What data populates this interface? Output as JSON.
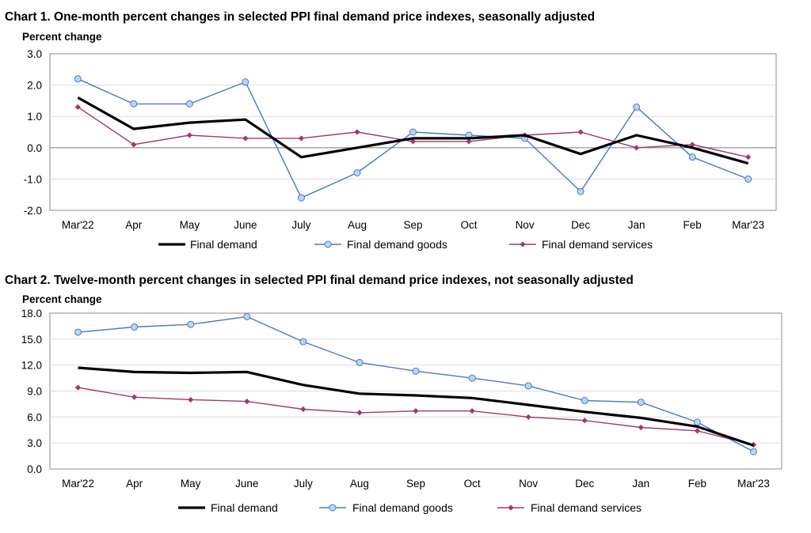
{
  "chart_data": [
    {
      "type": "line",
      "title": "Chart 1. One-month percent changes in selected PPI final demand price indexes, seasonally adjusted",
      "ylabel": "Percent change",
      "xlabel": "",
      "ylim": [
        -2.0,
        3.0
      ],
      "yticks": [
        "3.0",
        "2.0",
        "1.0",
        "0.0",
        "-1.0",
        "-2.0"
      ],
      "ytick_values": [
        3,
        2,
        1,
        0,
        -1,
        -2
      ],
      "categories": [
        "Mar'22",
        "Apr",
        "May",
        "June",
        "July",
        "Aug",
        "Sep",
        "Oct",
        "Nov",
        "Dec",
        "Jan",
        "Feb",
        "Mar'23"
      ],
      "grid": true,
      "legend_position": "bottom",
      "series": [
        {
          "name": "Final demand",
          "color": "#000000",
          "marker": "none",
          "values": [
            1.6,
            0.6,
            0.8,
            0.9,
            -0.3,
            0.0,
            0.3,
            0.3,
            0.4,
            -0.2,
            0.4,
            0.0,
            -0.5
          ]
        },
        {
          "name": "Final demand goods",
          "color": "#4a78c2",
          "marker": "circle",
          "values": [
            2.2,
            1.4,
            1.4,
            2.1,
            -1.6,
            -0.8,
            0.5,
            0.4,
            0.3,
            -1.4,
            1.3,
            -0.3,
            -1.0
          ]
        },
        {
          "name": "Final demand services",
          "color": "#9b3a6e",
          "marker": "diamond",
          "values": [
            1.3,
            0.1,
            0.4,
            0.3,
            0.3,
            0.5,
            0.2,
            0.2,
            0.4,
            0.5,
            0.0,
            0.1,
            -0.3
          ]
        }
      ]
    },
    {
      "type": "line",
      "title": "Chart 2. Twelve-month percent changes in selected PPI final demand price indexes, not seasonally adjusted",
      "ylabel": "Percent change",
      "xlabel": "",
      "ylim": [
        0.0,
        18.0
      ],
      "yticks": [
        "18.0",
        "15.0",
        "12.0",
        "9.0",
        "6.0",
        "3.0",
        "0.0"
      ],
      "ytick_values": [
        18,
        15,
        12,
        9,
        6,
        3,
        0
      ],
      "categories": [
        "Mar'22",
        "Apr",
        "May",
        "June",
        "July",
        "Aug",
        "Sep",
        "Oct",
        "Nov",
        "Dec",
        "Jan",
        "Feb",
        "Mar'23"
      ],
      "grid": true,
      "legend_position": "bottom",
      "series": [
        {
          "name": "Final demand",
          "color": "#000000",
          "marker": "none",
          "values": [
            11.7,
            11.2,
            11.1,
            11.2,
            9.7,
            8.7,
            8.5,
            8.2,
            7.4,
            6.6,
            5.9,
            4.9,
            2.7
          ]
        },
        {
          "name": "Final demand goods",
          "color": "#4a78c2",
          "marker": "circle",
          "values": [
            15.8,
            16.4,
            16.7,
            17.6,
            14.7,
            12.3,
            11.3,
            10.5,
            9.6,
            7.9,
            7.7,
            5.4,
            2.0
          ]
        },
        {
          "name": "Final demand services",
          "color": "#9b3a6e",
          "marker": "diamond",
          "values": [
            9.4,
            8.3,
            8.0,
            7.8,
            6.9,
            6.5,
            6.7,
            6.7,
            6.0,
            5.6,
            4.8,
            4.4,
            2.8
          ]
        }
      ]
    }
  ]
}
